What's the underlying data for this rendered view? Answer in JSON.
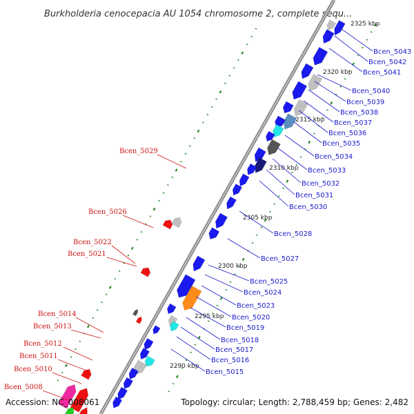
{
  "title": "Burkholderia cenocepacia AU 1054 chromosome 2, complete sequ...",
  "footer": {
    "accession": "Accession: NC_008061",
    "topology": "Topology: circular; Length: 2,788,459 bp; Genes: 2,482"
  },
  "colors": {
    "backbone": "#909090",
    "gene_blue": "#1a1aee",
    "gene_red": "#ee1111",
    "gene_orange": "#ff8c1a",
    "gene_cyan": "#22e5e5",
    "gene_steel": "#5a8fbf",
    "gene_gray": "#c0c0c0",
    "gene_darkgray": "#555555",
    "gene_magenta": "#ee2aa0",
    "gene_navy": "#1a1a7a",
    "gene_green": "#22cc22",
    "label_fwd": "#1a1acc",
    "label_rev": "#cc1111",
    "gc_dots": "#228822"
  },
  "kbp_ticks": [
    "2325 kbp",
    "2320 kbp",
    "2315 kbp",
    "2310 kbp",
    "2305 kbp",
    "2300 kbp",
    "2295 kbp",
    "2290 kbp"
  ],
  "forward_labels": [
    "Bcen_5043",
    "Bcen_5042",
    "Bcen_5041",
    "Bcen_5040",
    "Bcen_5039",
    "Bcen_5038",
    "Bcen_5037",
    "Bcen_5036",
    "Bcen_5035",
    "Bcen_5034",
    "Bcen_5033",
    "Bcen_5032",
    "Bcen_5031",
    "Bcen_5030",
    "Bcen_5028",
    "Bcen_5027",
    "Bcen_5025",
    "Bcen_5024",
    "Bcen_5023",
    "Bcen_5020",
    "Bcen_5019",
    "Bcen_5018",
    "Bcen_5017",
    "Bcen_5016",
    "Bcen_5015"
  ],
  "reverse_labels": [
    "Bcen_5029",
    "Bcen_5026",
    "Bcen_5022",
    "Bcen_5021",
    "Bcen_5014",
    "Bcen_5013",
    "Bcen_5012",
    "Bcen_5011",
    "Bcen_5010",
    "Bcen_5008"
  ]
}
